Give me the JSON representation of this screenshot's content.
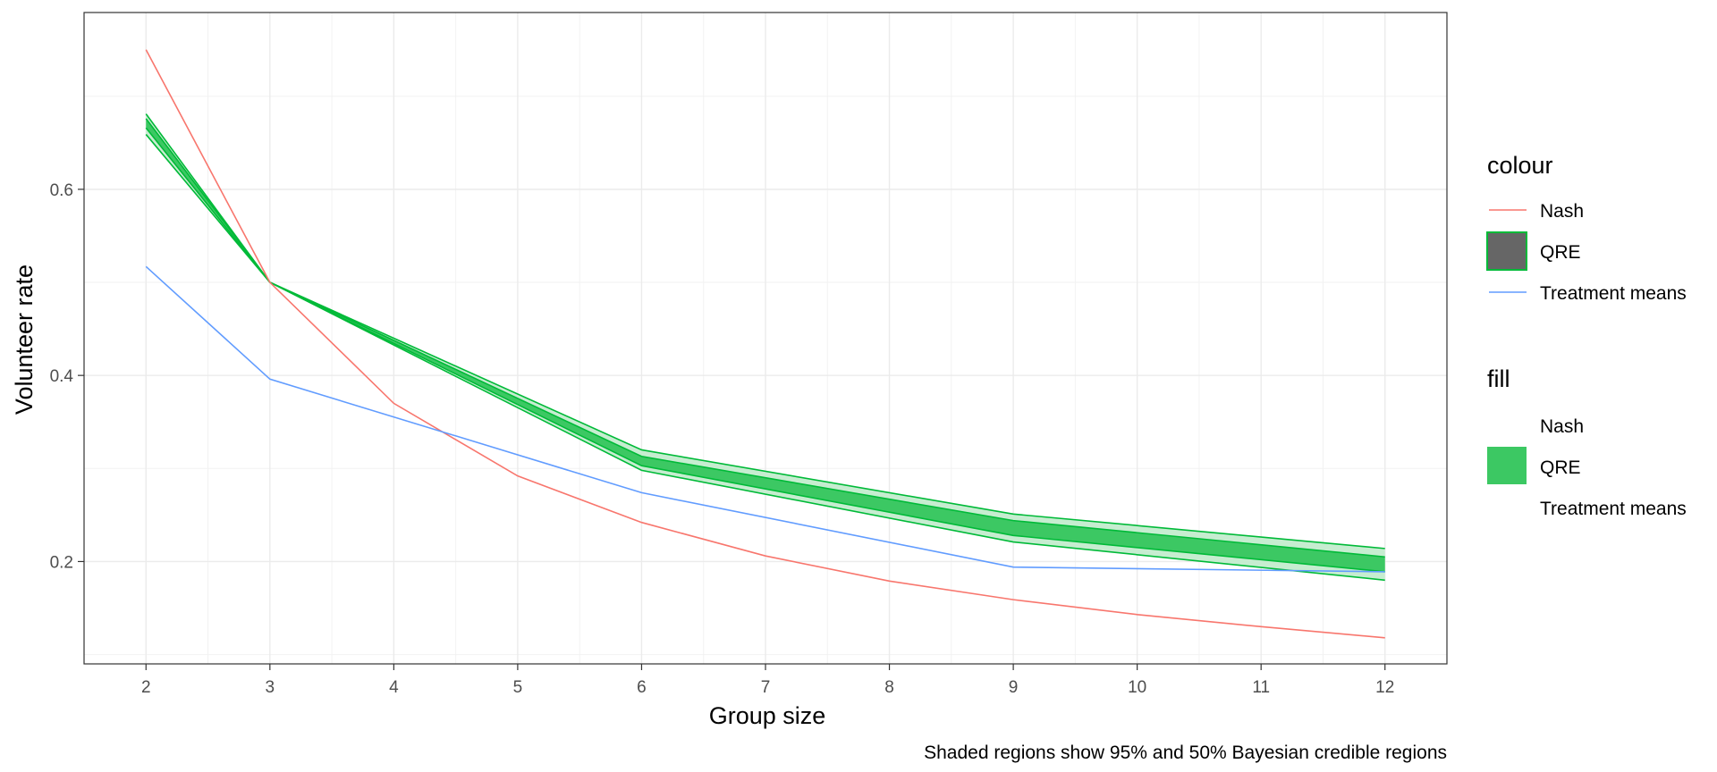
{
  "chart_data": {
    "type": "line",
    "xlabel": "Group size",
    "ylabel": "Volunteer rate",
    "caption": "Shaded regions show 95% and 50% Bayesian credible regions",
    "xlim": [
      1.5,
      12.5
    ],
    "ylim": [
      0.09,
      0.79
    ],
    "x_ticks": [
      2,
      3,
      4,
      5,
      6,
      7,
      8,
      9,
      10,
      11,
      12
    ],
    "x_tick_labels": [
      "2",
      "3",
      "4",
      "5",
      "6",
      "7",
      "8",
      "9",
      "10",
      "11",
      "12"
    ],
    "y_ticks": [
      0.2,
      0.4,
      0.6
    ],
    "y_tick_labels": [
      "0.2",
      "0.4",
      "0.6"
    ],
    "grid": true,
    "x": [
      2,
      3,
      4,
      5,
      6,
      7,
      8,
      9,
      10,
      11,
      12
    ],
    "series": [
      {
        "name": "Nash",
        "color": "#F8766D",
        "values": [
          0.75,
          0.5,
          0.37,
          0.292,
          0.242,
          0.206,
          0.179,
          0.159,
          0.143,
          0.13,
          0.118
        ]
      },
      {
        "name": "Treatment means",
        "color": "#619CFF",
        "x": [
          2,
          3,
          6,
          9,
          12
        ],
        "values": [
          0.517,
          0.396,
          0.274,
          0.194,
          0.189
        ]
      },
      {
        "name": "QRE",
        "color": "#00BA38",
        "band95_lower": [
          0.659,
          0.5,
          0.298,
          0.221,
          0.18
        ],
        "band95_upper": [
          0.681,
          0.5,
          0.32,
          0.251,
          0.214
        ],
        "band50_lower": [
          0.666,
          0.5,
          0.303,
          0.228,
          0.189
        ],
        "band50_upper": [
          0.676,
          0.5,
          0.313,
          0.244,
          0.205
        ],
        "x": [
          2,
          3,
          6,
          9,
          12
        ]
      }
    ],
    "legend": {
      "position": "right",
      "colour_title": "colour",
      "fill_title": "fill",
      "colour_entries": [
        "Nash",
        "QRE",
        "Treatment means"
      ],
      "fill_entries": [
        "Nash",
        "QRE",
        "Treatment means"
      ]
    },
    "colors": {
      "nash": "#F8766D",
      "qre": "#00BA38",
      "qre_band95": "#C6EDD0",
      "qre_band50": "#3CC863",
      "treatment": "#619CFF",
      "legend_qre_key_fill": "#666666",
      "legend_fill_key": "#3CC863"
    }
  }
}
